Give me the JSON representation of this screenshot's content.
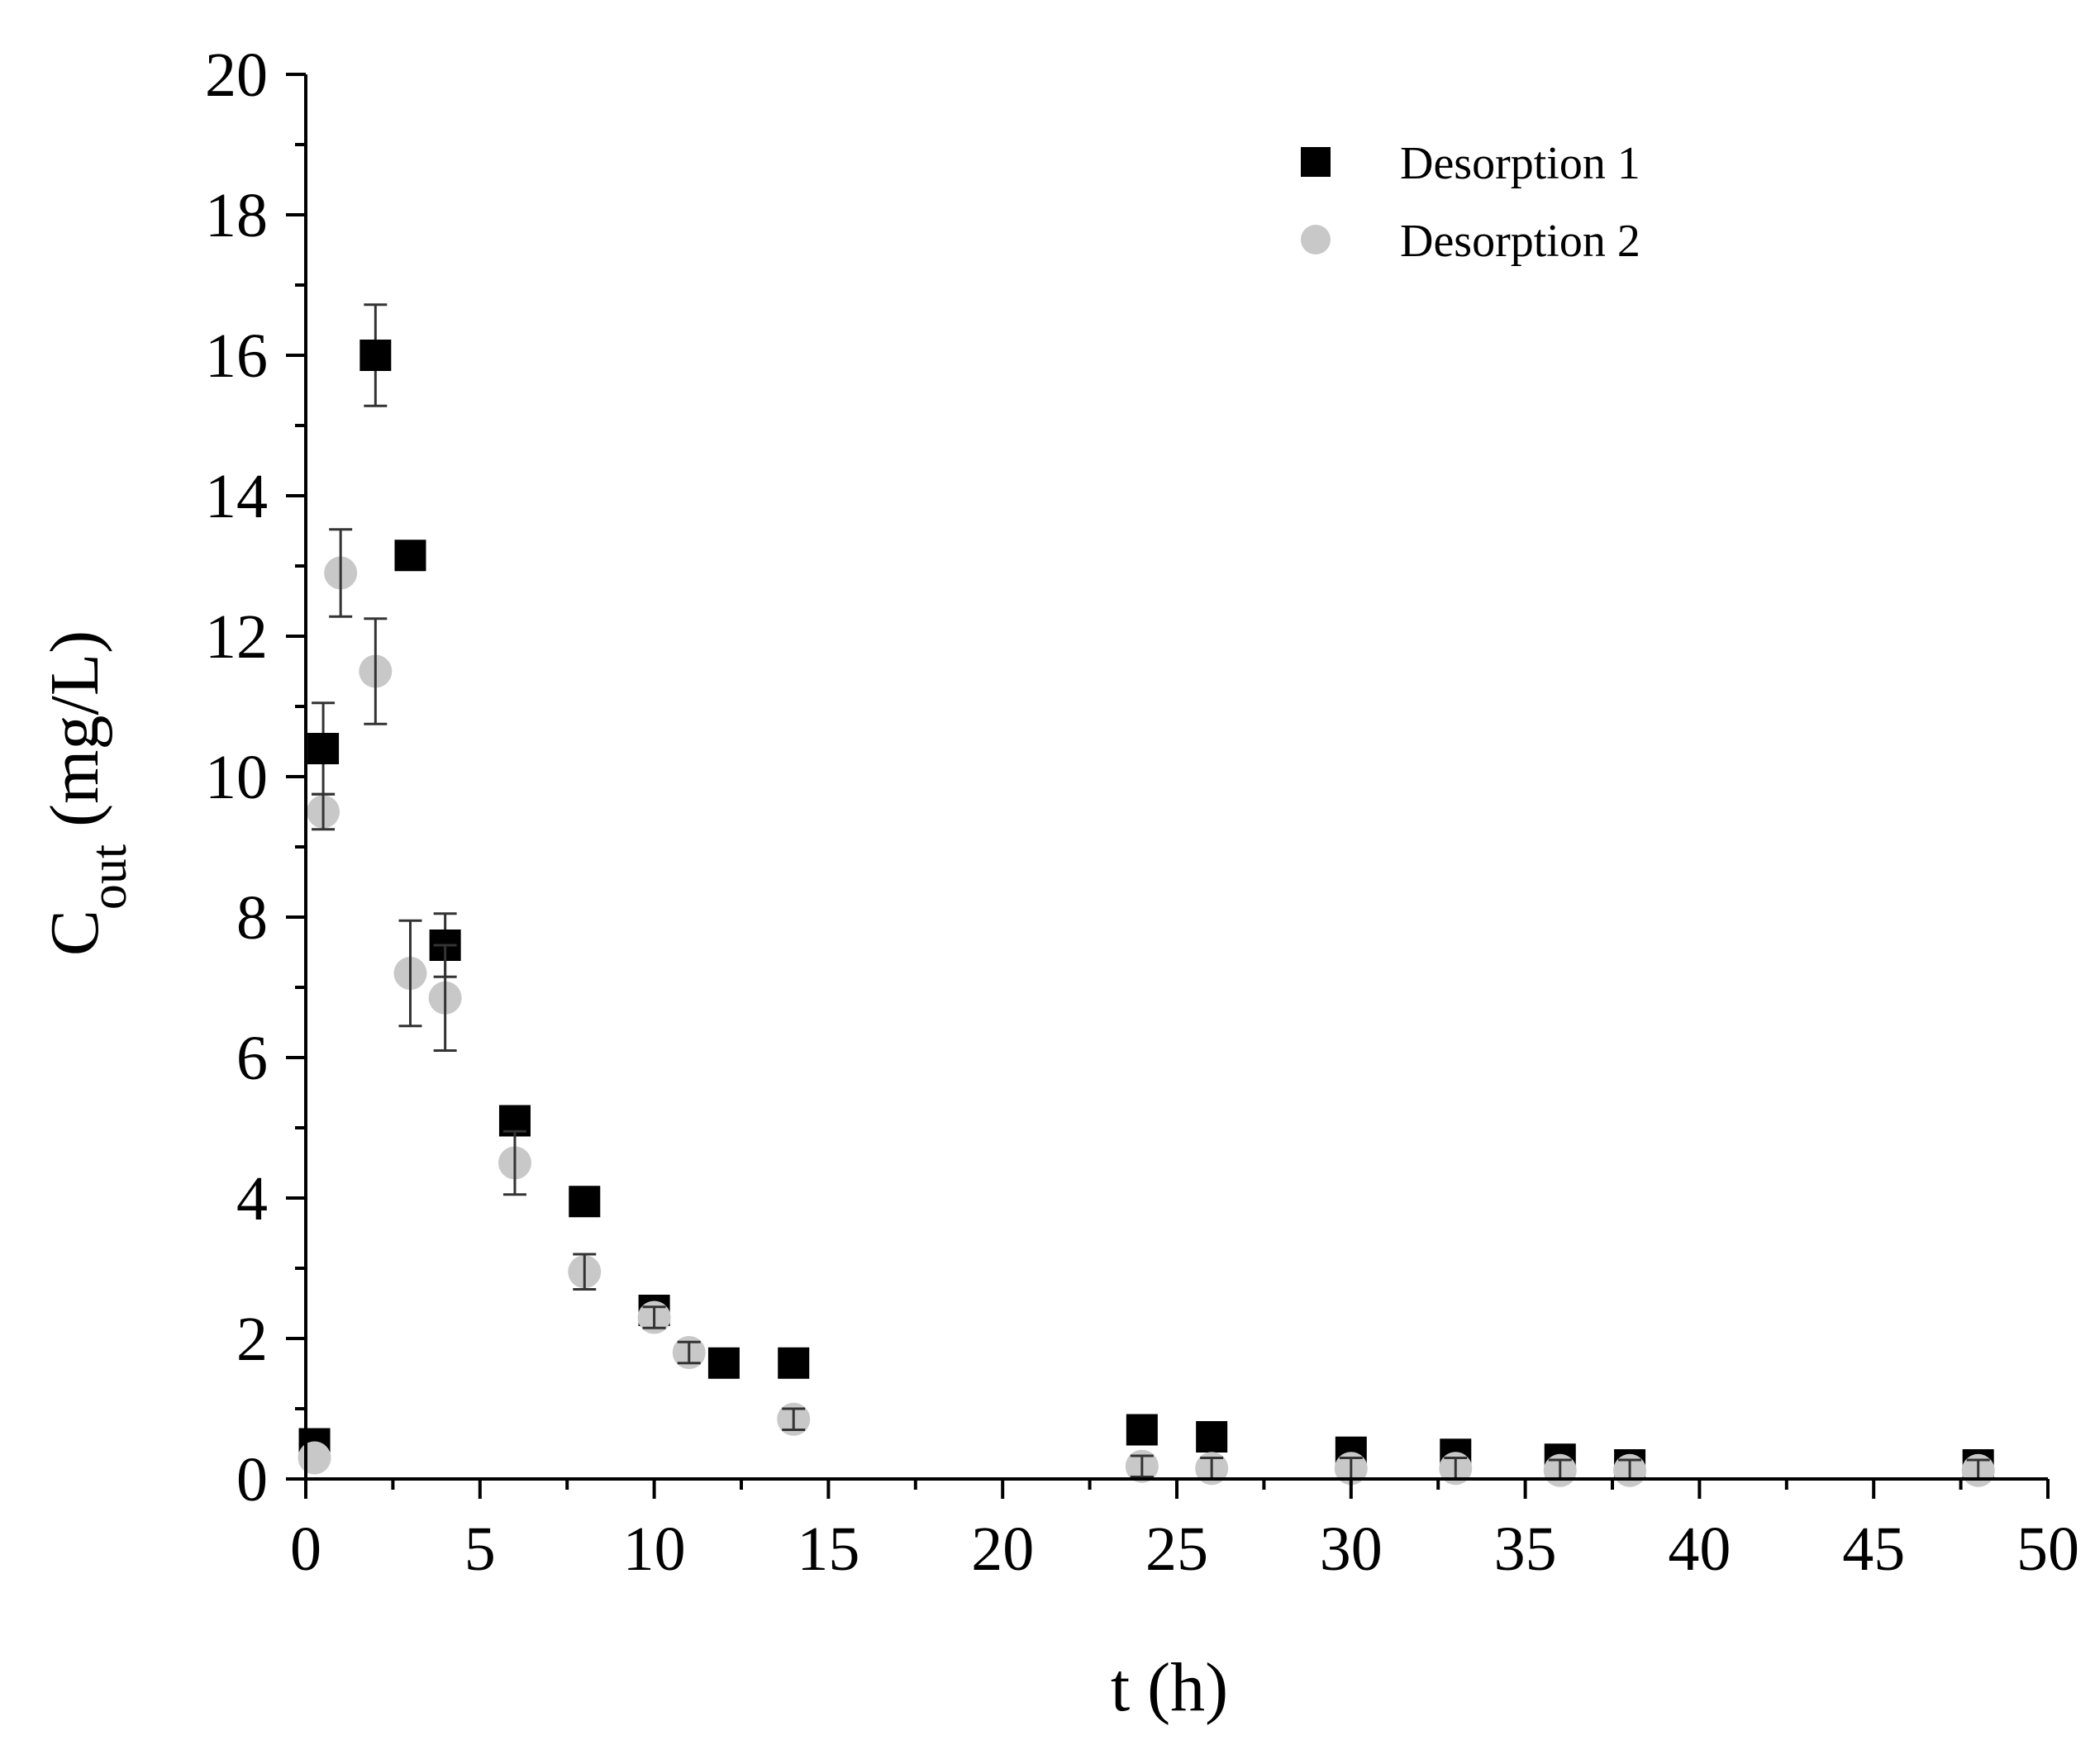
{
  "chart_data": {
    "type": "scatter",
    "title": "",
    "xlabel": "t (h)",
    "ylabel_main": "C",
    "ylabel_sub": "out",
    "ylabel_unit": " (mg/L)",
    "xlim": [
      0,
      50
    ],
    "ylim": [
      0,
      20
    ],
    "xticks": [
      0,
      5,
      10,
      15,
      20,
      25,
      30,
      35,
      40,
      45,
      50
    ],
    "yticks": [
      0,
      2,
      4,
      6,
      8,
      10,
      12,
      14,
      16,
      18,
      20
    ],
    "xtick_labels": [
      "0",
      "5",
      "10",
      "15",
      "20",
      "25",
      "30",
      "35",
      "40",
      "45",
      "50"
    ],
    "ytick_labels": [
      "0",
      "2",
      "4",
      "6",
      "8",
      "10",
      "12",
      "14",
      "16",
      "18",
      "20"
    ],
    "grid": false,
    "legend_position": "top-right",
    "series": [
      {
        "name": "Desorption 1",
        "marker": "square",
        "color": "#000000",
        "points": [
          {
            "x": 0.25,
            "y": 0.5,
            "err": 0
          },
          {
            "x": 0.5,
            "y": 10.4,
            "err": 0.65
          },
          {
            "x": 2,
            "y": 16.0,
            "err": 0.72
          },
          {
            "x": 3,
            "y": 13.15,
            "err": 0.1
          },
          {
            "x": 4,
            "y": 7.6,
            "err": 0.45
          },
          {
            "x": 6,
            "y": 5.1,
            "err": 0.15
          },
          {
            "x": 8,
            "y": 3.95,
            "err": 0
          },
          {
            "x": 10,
            "y": 2.4,
            "err": 0
          },
          {
            "x": 12,
            "y": 1.65,
            "err": 0
          },
          {
            "x": 14,
            "y": 1.65,
            "err": 0
          },
          {
            "x": 24,
            "y": 0.7,
            "err": 0
          },
          {
            "x": 26,
            "y": 0.6,
            "err": 0
          },
          {
            "x": 30,
            "y": 0.38,
            "err": 0
          },
          {
            "x": 33,
            "y": 0.35,
            "err": 0
          },
          {
            "x": 36,
            "y": 0.28,
            "err": 0
          },
          {
            "x": 38,
            "y": 0.2,
            "err": 0
          },
          {
            "x": 48,
            "y": 0.2,
            "err": 0
          }
        ]
      },
      {
        "name": "Desorption 2",
        "marker": "circle",
        "color": "#c8c8c8",
        "points": [
          {
            "x": 0.25,
            "y": 0.3,
            "err": 0
          },
          {
            "x": 0.5,
            "y": 9.5,
            "err": 0.25
          },
          {
            "x": 1,
            "y": 12.9,
            "err": 0.62
          },
          {
            "x": 2,
            "y": 11.5,
            "err": 0.75
          },
          {
            "x": 3,
            "y": 7.2,
            "err": 0.75
          },
          {
            "x": 4,
            "y": 6.85,
            "err": 0.75
          },
          {
            "x": 6,
            "y": 4.5,
            "err": 0.45
          },
          {
            "x": 8,
            "y": 2.95,
            "err": 0.25
          },
          {
            "x": 10,
            "y": 2.3,
            "err": 0.15
          },
          {
            "x": 11,
            "y": 1.8,
            "err": 0.15
          },
          {
            "x": 14,
            "y": 0.85,
            "err": 0.15
          },
          {
            "x": 24,
            "y": 0.18,
            "err": 0.15
          },
          {
            "x": 26,
            "y": 0.15,
            "err": 0.15
          },
          {
            "x": 30,
            "y": 0.15,
            "err": 0.15
          },
          {
            "x": 33,
            "y": 0.15,
            "err": 0.15
          },
          {
            "x": 36,
            "y": 0.12,
            "err": 0.15
          },
          {
            "x": 38,
            "y": 0.12,
            "err": 0.15
          },
          {
            "x": 48,
            "y": 0.12,
            "err": 0.15
          }
        ]
      }
    ]
  }
}
